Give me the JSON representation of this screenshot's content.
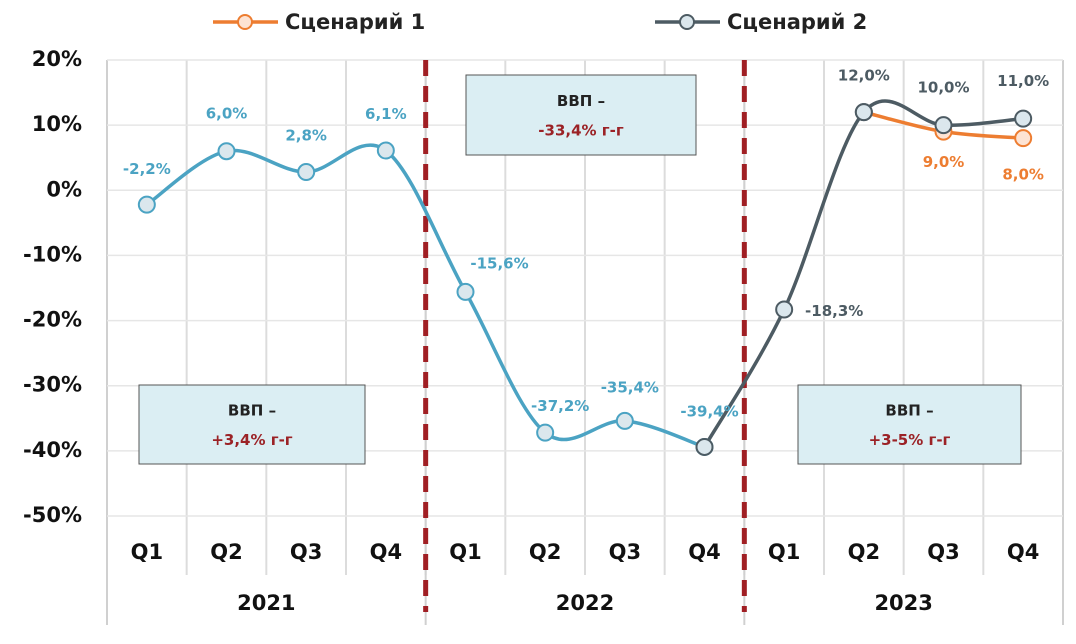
{
  "chart_data": {
    "type": "line",
    "categories": [
      "Q1",
      "Q2",
      "Q3",
      "Q4",
      "Q1",
      "Q2",
      "Q3",
      "Q4",
      "Q1",
      "Q2",
      "Q3",
      "Q4"
    ],
    "groups": [
      "2021",
      "2022",
      "2023"
    ],
    "series": [
      {
        "color": "#4ba3c3",
        "values": [
          -2.2,
          6.0,
          2.8,
          6.1,
          -15.6,
          -37.2,
          -35.4,
          -39.4,
          null,
          null,
          null,
          null
        ],
        "value_labels": [
          "-2,2%",
          "6,0%",
          "2,8%",
          "6,1%",
          "-15,6%",
          "-37,2%",
          "-35,4%",
          "-39,4%",
          null,
          null,
          null,
          null
        ]
      },
      {
        "name": "Сценарий 1",
        "color": "#ed7d31",
        "values": [
          null,
          null,
          null,
          null,
          null,
          null,
          null,
          null,
          null,
          12.0,
          9.0,
          8.0
        ],
        "value_labels": [
          null,
          null,
          null,
          null,
          null,
          null,
          null,
          null,
          null,
          null,
          "9,0%",
          "8,0%"
        ]
      },
      {
        "name": "Сценарий 2",
        "color": "#4d5b63",
        "values": [
          null,
          null,
          null,
          null,
          null,
          null,
          null,
          -39.4,
          -18.3,
          12.0,
          10.0,
          11.0
        ],
        "value_labels": [
          null,
          null,
          null,
          null,
          null,
          null,
          null,
          null,
          "-18,3%",
          "12,0%",
          "10,0%",
          "11,0%"
        ]
      }
    ],
    "annotations": [
      {
        "title": "ВВП –",
        "text": "+3,4% г-г"
      },
      {
        "title": "ВВП –",
        "text": "-33,4% г-г"
      },
      {
        "title": "ВВП –",
        "text": "+3-5% г-г"
      }
    ],
    "ylim": [
      -50,
      20
    ],
    "yticks": [
      {
        "value": -50,
        "label": "-50%"
      },
      {
        "value": -40,
        "label": "-40%"
      },
      {
        "value": -30,
        "label": "-30%"
      },
      {
        "value": -20,
        "label": "-20%"
      },
      {
        "value": -10,
        "label": "-10%"
      },
      {
        "value": 0,
        "label": "0%"
      },
      {
        "value": 10,
        "label": "10%"
      },
      {
        "value": 20,
        "label": "20%"
      }
    ],
    "grid": true,
    "legend": "top"
  }
}
